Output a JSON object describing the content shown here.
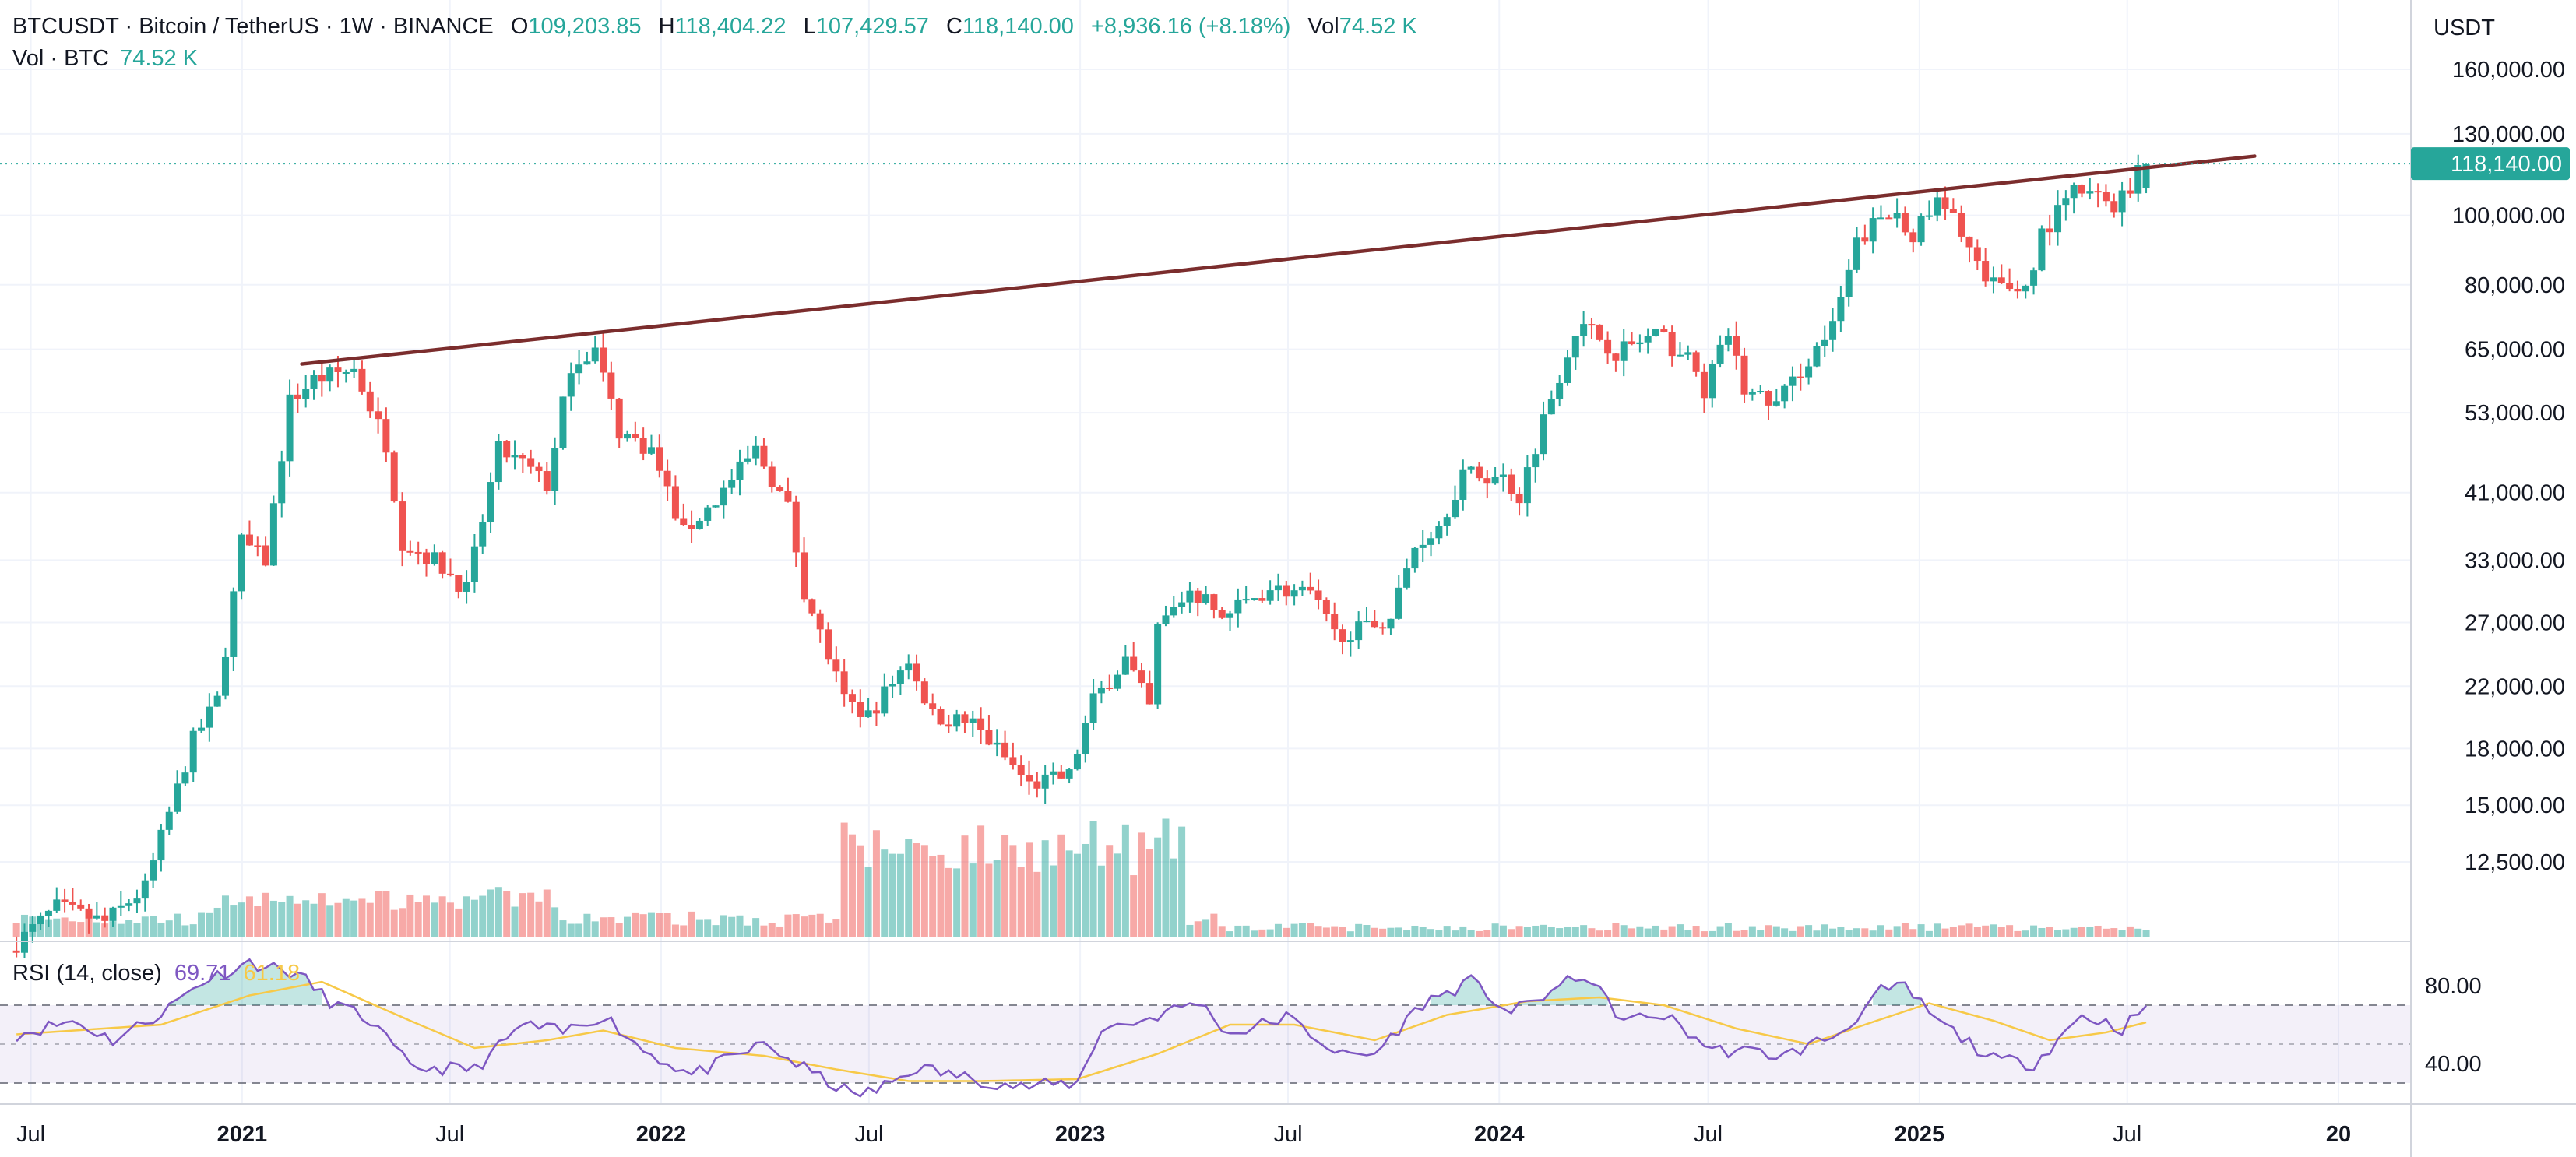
{
  "header": {
    "symbol": "BTCUSDT",
    "name": "Bitcoin / TetherUS",
    "interval": "1W",
    "exchange": "BINANCE",
    "open_label": "O",
    "open": "109,203.85",
    "high_label": "H",
    "high": "118,404.22",
    "low_label": "L",
    "low": "107,429.57",
    "close_label": "C",
    "close": "118,140.00",
    "change": "+8,936.16 (+8.18%)",
    "vol_label": "Vol",
    "vol": "74.52 K"
  },
  "volume_legend": {
    "label": "Vol · BTC",
    "value": "74.52 K"
  },
  "rsi_legend": {
    "label": "RSI (14, close)",
    "rsi": "69.71",
    "ma": "61.18"
  },
  "price_axis": {
    "currency": "USDT",
    "ticks": [
      "160,000.00",
      "130,000.00",
      "100,000.00",
      "80,000.00",
      "65,000.00",
      "53,000.00",
      "41,000.00",
      "33,000.00",
      "27,000.00",
      "22,000.00",
      "18,000.00",
      "15,000.00",
      "12,500.00"
    ],
    "last_price": "118,140.00"
  },
  "rsi_axis": {
    "ticks": [
      "80.00",
      "40.00"
    ]
  },
  "time_axis": {
    "ticks": [
      "Jul",
      "2021",
      "Jul",
      "2022",
      "Jul",
      "2023",
      "Jul",
      "2024",
      "Jul",
      "2025",
      "Jul",
      "20"
    ]
  },
  "colors": {
    "up": "#26a69a",
    "down": "#ef5350",
    "trendline": "#7b2d2d",
    "rsi": "#7e57c2",
    "rsi_ma": "#f7c948",
    "grid": "#f0f3fa"
  },
  "chart_data": {
    "type": "candlestick",
    "interval": "1W",
    "scale": "log",
    "ylim": [
      10000,
      175000
    ],
    "x_range": [
      "2020-06-15",
      "2026-01-01"
    ],
    "anchors": [
      [
        "2020-06-15",
        9400
      ],
      [
        "2020-07-27",
        10800
      ],
      [
        "2020-09-07",
        10300
      ],
      [
        "2020-10-12",
        11500
      ],
      [
        "2020-10-26",
        13500
      ],
      [
        "2020-11-23",
        18500
      ],
      [
        "2020-12-14",
        21000
      ],
      [
        "2021-01-04",
        35000
      ],
      [
        "2021-01-25",
        33000
      ],
      [
        "2021-02-15",
        55000
      ],
      [
        "2021-03-08",
        59000
      ],
      [
        "2021-04-12",
        61000
      ],
      [
        "2021-05-10",
        48000
      ],
      [
        "2021-05-24",
        35000
      ],
      [
        "2021-06-21",
        33000
      ],
      [
        "2021-07-19",
        30000
      ],
      [
        "2021-08-16",
        47000
      ],
      [
        "2021-09-06",
        45000
      ],
      [
        "2021-09-27",
        42000
      ],
      [
        "2021-10-18",
        62000
      ],
      [
        "2021-11-08",
        65000
      ],
      [
        "2021-11-29",
        50000
      ],
      [
        "2021-12-27",
        47000
      ],
      [
        "2022-01-24",
        36000
      ],
      [
        "2022-02-21",
        40000
      ],
      [
        "2022-03-28",
        47000
      ],
      [
        "2022-04-25",
        39000
      ],
      [
        "2022-05-09",
        30000
      ],
      [
        "2022-06-13",
        21000
      ],
      [
        "2022-07-04",
        20000
      ],
      [
        "2022-08-08",
        24000
      ],
      [
        "2022-08-29",
        20000
      ],
      [
        "2022-10-03",
        19500
      ],
      [
        "2022-11-07",
        17000
      ],
      [
        "2022-11-21",
        16000
      ],
      [
        "2022-12-26",
        16500
      ],
      [
        "2023-01-16",
        21000
      ],
      [
        "2023-02-13",
        24000
      ],
      [
        "2023-03-06",
        20500
      ],
      [
        "2023-03-13",
        26500
      ],
      [
        "2023-04-10",
        30000
      ],
      [
        "2023-05-08",
        27500
      ],
      [
        "2023-06-19",
        30200
      ],
      [
        "2023-07-24",
        29500
      ],
      [
        "2023-08-14",
        26000
      ],
      [
        "2023-09-11",
        26500
      ],
      [
        "2023-10-02",
        27500
      ],
      [
        "2023-10-23",
        34500
      ],
      [
        "2023-11-13",
        37000
      ],
      [
        "2023-12-04",
        43500
      ],
      [
        "2024-01-08",
        43000
      ],
      [
        "2024-01-22",
        40500
      ],
      [
        "2024-02-12",
        52000
      ],
      [
        "2024-03-11",
        69500
      ],
      [
        "2024-03-25",
        69000
      ],
      [
        "2024-04-15",
        64500
      ],
      [
        "2024-05-20",
        68000
      ],
      [
        "2024-06-17",
        63000
      ],
      [
        "2024-07-01",
        57000
      ],
      [
        "2024-07-22",
        68500
      ],
      [
        "2024-08-05",
        57000
      ],
      [
        "2024-09-02",
        54500
      ],
      [
        "2024-09-30",
        63000
      ],
      [
        "2024-10-21",
        69500
      ],
      [
        "2024-11-11",
        91000
      ],
      [
        "2024-11-25",
        97000
      ],
      [
        "2024-12-16",
        101000
      ],
      [
        "2024-12-30",
        94000
      ],
      [
        "2025-01-20",
        104000
      ],
      [
        "2025-02-10",
        96000
      ],
      [
        "2025-03-03",
        80000
      ],
      [
        "2025-04-07",
        79000
      ],
      [
        "2025-04-21",
        94000
      ],
      [
        "2025-05-19",
        108000
      ],
      [
        "2025-06-09",
        106000
      ],
      [
        "2025-06-23",
        104000
      ],
      [
        "2025-07-07",
        109000
      ],
      [
        "2025-07-14",
        118140
      ]
    ],
    "last_candle": {
      "open": 109203.85,
      "high": 118404.22,
      "low": 107429.57,
      "close": 118140.0,
      "volume": "74.52 K"
    },
    "trendline": {
      "from": [
        "2021-02-22",
        62000
      ],
      "to": [
        "2025-10-20",
        121000
      ]
    },
    "rsi": {
      "length": 14,
      "source": "close",
      "last": 69.71,
      "ma_last": 61.18,
      "overbought": 70,
      "oversold": 30,
      "ticks": [
        80,
        40
      ],
      "anchors": [
        [
          "2020-06-15",
          55
        ],
        [
          "2020-08-03",
          62
        ],
        [
          "2020-09-07",
          52
        ],
        [
          "2020-10-19",
          66
        ],
        [
          "2020-11-23",
          82
        ],
        [
          "2021-01-04",
          92
        ],
        [
          "2021-02-15",
          86
        ],
        [
          "2021-03-15",
          72
        ],
        [
          "2021-04-19",
          62
        ],
        [
          "2021-05-24",
          38
        ],
        [
          "2021-07-19",
          37
        ],
        [
          "2021-08-30",
          60
        ],
        [
          "2021-10-04",
          56
        ],
        [
          "2021-11-08",
          65
        ],
        [
          "2021-12-13",
          47
        ],
        [
          "2022-01-24",
          34
        ],
        [
          "2022-03-28",
          50
        ],
        [
          "2022-05-09",
          35
        ],
        [
          "2022-06-13",
          24
        ],
        [
          "2022-07-04",
          26
        ],
        [
          "2022-08-08",
          38
        ],
        [
          "2022-09-19",
          33
        ],
        [
          "2022-11-07",
          28
        ],
        [
          "2022-12-26",
          30
        ],
        [
          "2023-01-16",
          58
        ],
        [
          "2023-02-20",
          62
        ],
        [
          "2023-04-10",
          72
        ],
        [
          "2023-05-08",
          55
        ],
        [
          "2023-06-26",
          64
        ],
        [
          "2023-08-14",
          44
        ],
        [
          "2023-09-11",
          45
        ],
        [
          "2023-10-23",
          71
        ],
        [
          "2023-12-04",
          82
        ],
        [
          "2024-01-08",
          66
        ],
        [
          "2024-03-11",
          86
        ],
        [
          "2024-04-15",
          62
        ],
        [
          "2024-05-20",
          65
        ],
        [
          "2024-07-01",
          47
        ],
        [
          "2024-08-05",
          46
        ],
        [
          "2024-09-02",
          44
        ],
        [
          "2024-10-21",
          56
        ],
        [
          "2024-11-25",
          77
        ],
        [
          "2024-12-16",
          79
        ],
        [
          "2025-01-13",
          62
        ],
        [
          "2025-03-03",
          42
        ],
        [
          "2025-04-07",
          40
        ],
        [
          "2025-05-19",
          65
        ],
        [
          "2025-06-23",
          58
        ],
        [
          "2025-07-14",
          69.71
        ]
      ]
    },
    "rsi_ma": {
      "anchors": [
        [
          "2020-06-15",
          55
        ],
        [
          "2020-10-19",
          60
        ],
        [
          "2021-01-04",
          75
        ],
        [
          "2021-03-08",
          82
        ],
        [
          "2021-05-24",
          62
        ],
        [
          "2021-07-19",
          48
        ],
        [
          "2021-09-20",
          52
        ],
        [
          "2021-11-08",
          57
        ],
        [
          "2022-01-10",
          48
        ],
        [
          "2022-03-28",
          44
        ],
        [
          "2022-05-30",
          37
        ],
        [
          "2022-08-01",
          31
        ],
        [
          "2022-10-03",
          31
        ],
        [
          "2022-12-26",
          32
        ],
        [
          "2023-03-06",
          45
        ],
        [
          "2023-05-08",
          60
        ],
        [
          "2023-07-03",
          60
        ],
        [
          "2023-09-11",
          52
        ],
        [
          "2023-11-13",
          65
        ],
        [
          "2024-01-22",
          72
        ],
        [
          "2024-03-25",
          74
        ],
        [
          "2024-05-20",
          70
        ],
        [
          "2024-07-22",
          58
        ],
        [
          "2024-09-23",
          50
        ],
        [
          "2024-11-11",
          60
        ],
        [
          "2025-01-06",
          71
        ],
        [
          "2025-03-03",
          62
        ],
        [
          "2025-04-21",
          52
        ],
        [
          "2025-06-09",
          56
        ],
        [
          "2025-07-14",
          61.18
        ]
      ]
    }
  }
}
